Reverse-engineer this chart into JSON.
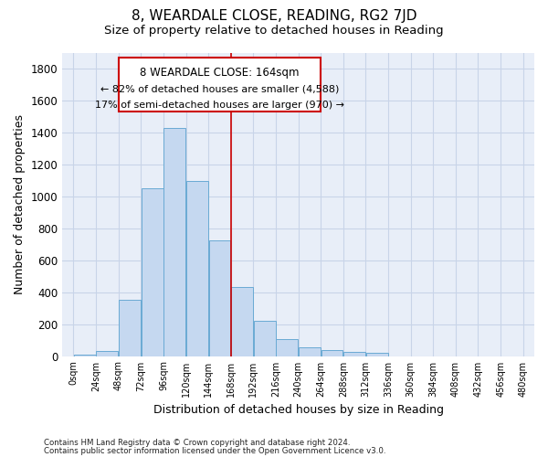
{
  "title": "8, WEARDALE CLOSE, READING, RG2 7JD",
  "subtitle": "Size of property relative to detached houses in Reading",
  "xlabel": "Distribution of detached houses by size in Reading",
  "ylabel": "Number of detached properties",
  "footnote1": "Contains HM Land Registry data © Crown copyright and database right 2024.",
  "footnote2": "Contains public sector information licensed under the Open Government Licence v3.0.",
  "bin_labels": [
    "0sqm",
    "24sqm",
    "48sqm",
    "72sqm",
    "96sqm",
    "120sqm",
    "144sqm",
    "168sqm",
    "192sqm",
    "216sqm",
    "240sqm",
    "264sqm",
    "288sqm",
    "312sqm",
    "336sqm",
    "360sqm",
    "384sqm",
    "408sqm",
    "432sqm",
    "456sqm",
    "480sqm"
  ],
  "bar_values": [
    10,
    30,
    350,
    1050,
    1430,
    1095,
    725,
    430,
    220,
    105,
    55,
    40,
    25,
    20,
    0,
    0,
    0,
    0,
    0,
    0
  ],
  "bar_color": "#c5d8f0",
  "bar_edge_color": "#6aaad4",
  "vline_x": 168,
  "vline_color": "#cc0000",
  "annotation_line1": "8 WEARDALE CLOSE: 164sqm",
  "annotation_line2": "← 82% of detached houses are smaller (4,588)",
  "annotation_line3": "17% of semi-detached houses are larger (970) →",
  "annotation_box_color": "#cc0000",
  "ylim": [
    0,
    1900
  ],
  "yticks": [
    0,
    200,
    400,
    600,
    800,
    1000,
    1200,
    1400,
    1600,
    1800
  ],
  "grid_color": "#c8d4e8",
  "bg_color": "#e8eef8",
  "title_fontsize": 11,
  "subtitle_fontsize": 9.5,
  "axis_fontsize": 9
}
